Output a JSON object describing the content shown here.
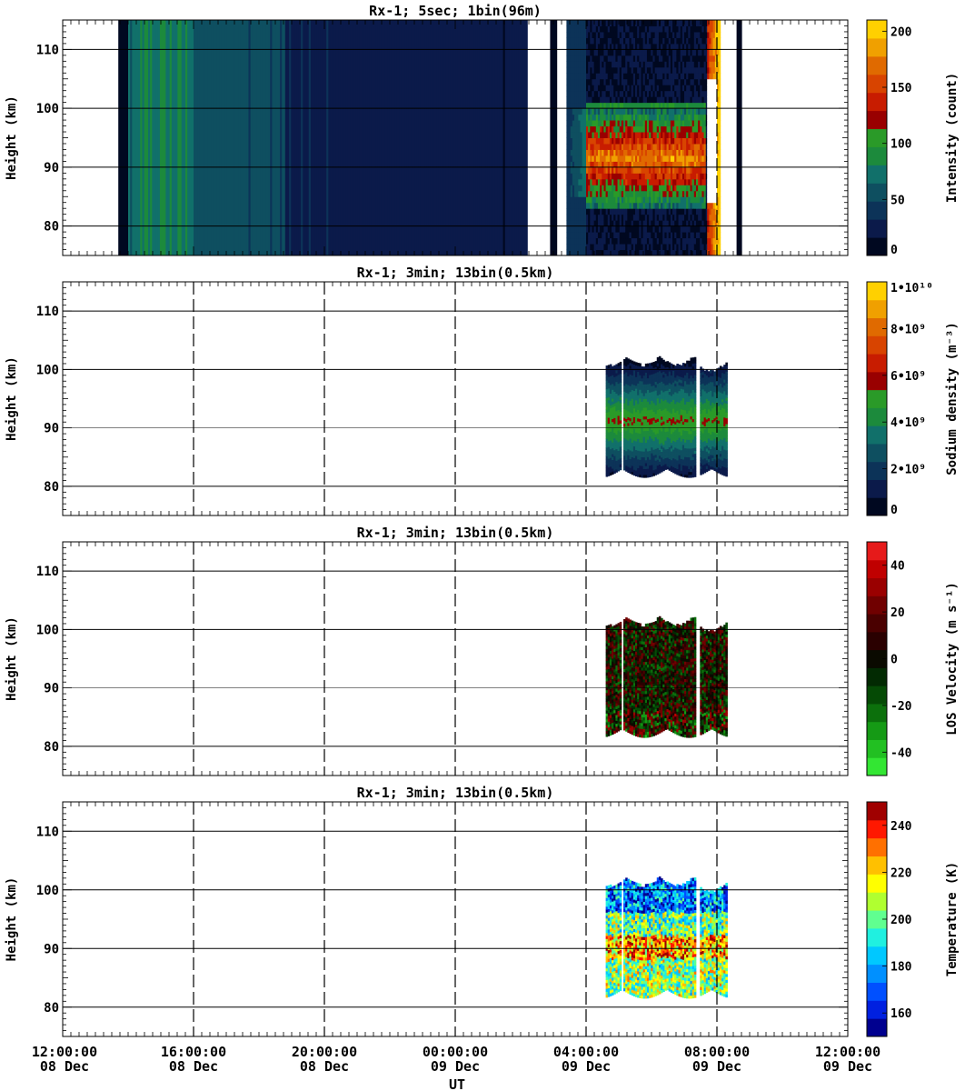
{
  "figure": {
    "x_axis_label": "UT",
    "x_ticks": [
      {
        "time": "12:00:00",
        "date": "08 Dec"
      },
      {
        "time": "16:00:00",
        "date": "08 Dec"
      },
      {
        "time": "20:00:00",
        "date": "08 Dec"
      },
      {
        "time": "00:00:00",
        "date": "09 Dec"
      },
      {
        "time": "04:00:00",
        "date": "09 Dec"
      },
      {
        "time": "08:00:00",
        "date": "09 Dec"
      },
      {
        "time": "12:00:00",
        "date": "09 Dec"
      }
    ]
  },
  "chart_data": [
    {
      "type": "heatmap",
      "title": "Rx-1;  5sec; 1bin(96m)",
      "ylabel": "Height (km)",
      "xrange_hours_since_start": [
        0,
        24
      ],
      "ylim": [
        75,
        115
      ],
      "y_ticks": [
        "80",
        "90",
        "100",
        "110"
      ],
      "colorbar": {
        "label": "Intensity (count)",
        "range": [
          0,
          210
        ],
        "ticks": [
          "0",
          "50",
          "100",
          "150",
          "200"
        ],
        "tick_values": [
          0,
          50,
          100,
          150,
          200
        ],
        "colors": [
          "#000820",
          "#0b1a4a",
          "#0c3358",
          "#0e4f60",
          "#11706a",
          "#1c8a3c",
          "#2a9a28",
          "#990000",
          "#c81c00",
          "#d84400",
          "#e06a00",
          "#f0a000",
          "#ffd000"
        ]
      },
      "gridlines": [
        80,
        90,
        100,
        110
      ],
      "bands": [
        {
          "x0": 1.7,
          "x1": 2.0,
          "kind": "dark"
        },
        {
          "x0": 2.0,
          "x1": 2.25,
          "kind": "edge"
        },
        {
          "x0": 2.25,
          "x1": 4.0,
          "kind": "green"
        },
        {
          "x0": 4.0,
          "x1": 6.8,
          "kind": "teal"
        },
        {
          "x0": 6.8,
          "x1": 14.2,
          "kind": "navy"
        },
        {
          "x0": 14.2,
          "x1": 14.9,
          "kind": "gap"
        },
        {
          "x0": 14.9,
          "x1": 15.1,
          "kind": "dark"
        },
        {
          "x0": 15.1,
          "x1": 15.4,
          "kind": "gap"
        },
        {
          "x0": 15.4,
          "x1": 19.7,
          "kind": "layer"
        },
        {
          "x0": 19.7,
          "x1": 20.1,
          "kind": "sunrise"
        },
        {
          "x0": 20.1,
          "x1": 20.6,
          "kind": "gap"
        },
        {
          "x0": 20.6,
          "x1": 20.75,
          "kind": "dark"
        }
      ],
      "layer": {
        "x0": 16.0,
        "x1": 19.6,
        "bottom_km": 83,
        "top_km": 101,
        "peak_km": 91
      }
    },
    {
      "type": "heatmap",
      "title": "Rx-1; 3min; 13bin(0.5km)",
      "ylabel": "Height (km)",
      "ylim": [
        75,
        115
      ],
      "y_ticks": [
        "80",
        "90",
        "100",
        "110"
      ],
      "colorbar": {
        "label": "Sodium density (m⁻³)",
        "range": [
          0,
          10
        ],
        "ticks": [
          "0",
          "2•10⁹",
          "4•10⁹",
          "6•10⁹",
          "8•10⁹",
          "1•10¹⁰"
        ],
        "tick_values": [
          0,
          2,
          4,
          6,
          8,
          10
        ],
        "colors": [
          "#000820",
          "#0b1a4a",
          "#0c3358",
          "#0e4f60",
          "#11706a",
          "#1c8a3c",
          "#2a9a28",
          "#990000",
          "#c81c00",
          "#d84400",
          "#e06a00",
          "#f0a000",
          "#ffd000"
        ]
      },
      "gridlines": [
        80,
        90,
        100,
        110
      ],
      "data_window": {
        "x0": 16.6,
        "x1": 20.3,
        "bottom_km": 83,
        "top_km": 102
      },
      "fill": "density"
    },
    {
      "type": "heatmap",
      "title": "Rx-1; 3min; 13bin(0.5km)",
      "ylabel": "Height (km)",
      "ylim": [
        75,
        115
      ],
      "y_ticks": [
        "80",
        "90",
        "100",
        "110"
      ],
      "colorbar": {
        "label": "LOS Velocity (m s⁻¹)",
        "range": [
          -50,
          50
        ],
        "ticks": [
          "-40",
          "-20",
          "0",
          "20",
          "40"
        ],
        "tick_values": [
          -40,
          -20,
          0,
          20,
          40
        ],
        "colors": [
          "#33e633",
          "#22c022",
          "#159a15",
          "#0c700c",
          "#054a05",
          "#022a02",
          "#0a0a00",
          "#2a0000",
          "#4a0000",
          "#700000",
          "#9a0000",
          "#c00000",
          "#e61a1a"
        ]
      },
      "gridlines": [
        80,
        90,
        100,
        110
      ],
      "data_window": {
        "x0": 16.6,
        "x1": 20.3,
        "bottom_km": 83,
        "top_km": 102
      },
      "fill": "velocity"
    },
    {
      "type": "heatmap",
      "title": "Rx-1; 3min; 13bin(0.5km)",
      "ylabel": "Height (km)",
      "ylim": [
        75,
        115
      ],
      "y_ticks": [
        "80",
        "90",
        "100",
        "110"
      ],
      "colorbar": {
        "label": "Temperature (K)",
        "range": [
          150,
          250
        ],
        "ticks": [
          "160",
          "180",
          "200",
          "220",
          "240"
        ],
        "tick_values": [
          160,
          180,
          200,
          220,
          240
        ],
        "colors": [
          "#00008f",
          "#0020e0",
          "#0050ff",
          "#0090ff",
          "#00c8ff",
          "#20f0e0",
          "#60ff90",
          "#b0ff30",
          "#ffff00",
          "#ffc000",
          "#ff7000",
          "#ff1800",
          "#a00000"
        ]
      },
      "gridlines": [
        80,
        90,
        100,
        110
      ],
      "data_window": {
        "x0": 16.6,
        "x1": 20.3,
        "bottom_km": 83,
        "top_km": 102
      },
      "fill": "temperature"
    }
  ]
}
